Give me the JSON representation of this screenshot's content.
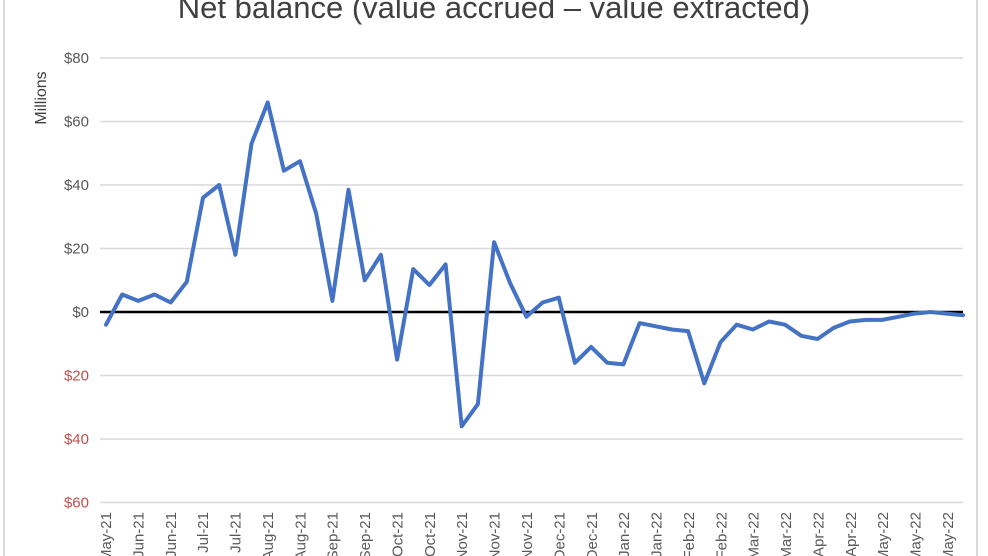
{
  "chart_data": {
    "type": "line",
    "title": "Net balance (value accrued – value extracted)",
    "ylabel": "Millions",
    "xlabel": "",
    "ylim": [
      -60,
      80
    ],
    "yticks": [
      80,
      60,
      40,
      20,
      0,
      -20,
      -40,
      -60
    ],
    "ytick_labels": [
      "$80",
      "$60",
      "$40",
      "$20",
      "$0",
      "$20",
      "$40",
      "$60"
    ],
    "negative_tick_color": "#c0504d",
    "grid": true,
    "x_tick_labels": [
      "May-21",
      "Jun-21",
      "Jun-21",
      "Jul-21",
      "Jul-21",
      "Aug-21",
      "Aug-21",
      "Sep-21",
      "Sep-21",
      "Oct-21",
      "Oct-21",
      "Nov-21",
      "Nov-21",
      "Nov-21",
      "Dec-21",
      "Dec-21",
      "Jan-22",
      "Jan-22",
      "Feb-22",
      "Feb-22",
      "Mar-22",
      "Mar-22",
      "Apr-22",
      "Apr-22",
      "May-22",
      "May-22",
      "May-22"
    ],
    "series": [
      {
        "name": "Net balance",
        "color": "#4472c4",
        "values": [
          -4,
          5.5,
          3.5,
          5.5,
          3,
          9.5,
          36,
          40,
          18,
          53,
          66,
          44.5,
          47.5,
          31,
          3.5,
          38.5,
          10,
          18,
          -15,
          13.5,
          8.5,
          15,
          -36,
          -29,
          22,
          9,
          -1.5,
          3,
          4.5,
          -16,
          -11,
          -16,
          -16.5,
          -3.5,
          -4.5,
          -5.5,
          -6,
          -22.5,
          -9.5,
          -4,
          -5.5,
          -3,
          -4,
          -7.5,
          -8.5,
          -5,
          -3,
          -2.5,
          -2.5,
          -1.5,
          -0.5,
          0,
          -0.5,
          -1
        ]
      }
    ]
  }
}
